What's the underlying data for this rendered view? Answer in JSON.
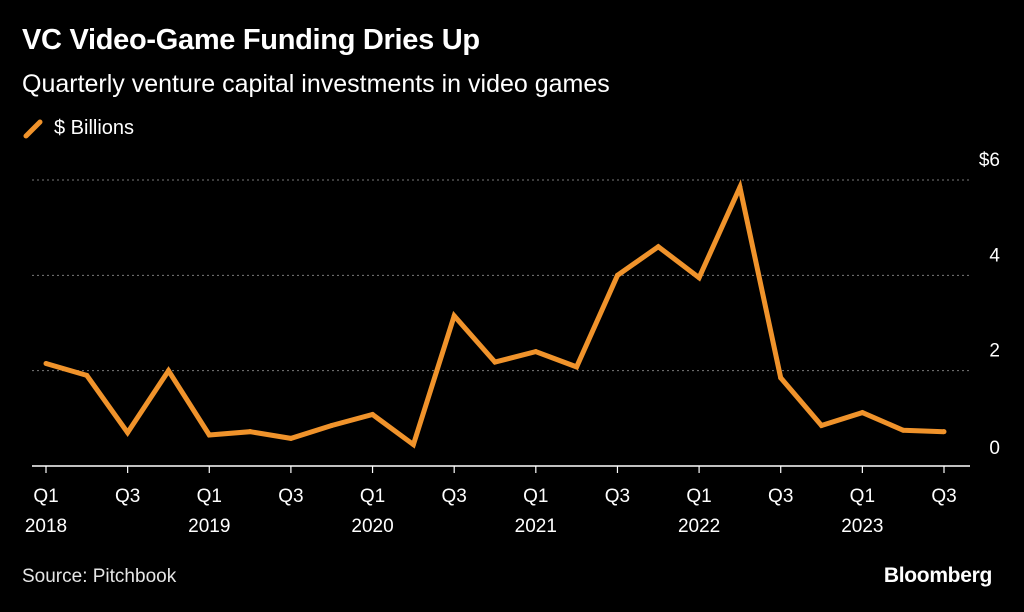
{
  "title": "VC Video-Game Funding Dries Up",
  "subtitle": "Quarterly venture capital investments in video games",
  "legend_label": "$ Billions",
  "source": "Source: Pitchbook",
  "brand": "Bloomberg",
  "colors": {
    "series": "#f0932b",
    "background": "#000000",
    "grid": "#7a7a7a",
    "text": "#ffffff"
  },
  "chart_data": {
    "type": "line",
    "title": "VC Video-Game Funding Dries Up",
    "subtitle": "Quarterly venture capital investments in video games",
    "xlabel": "",
    "ylabel": "$ Billions",
    "ylim": [
      0,
      6
    ],
    "y_ticks": [
      {
        "value": 6,
        "label": "$6"
      },
      {
        "value": 4,
        "label": "4"
      },
      {
        "value": 2,
        "label": "2"
      },
      {
        "value": 0,
        "label": "0"
      }
    ],
    "x_ticks": [
      {
        "index": 0,
        "label": "Q1",
        "year": "2018"
      },
      {
        "index": 2,
        "label": "Q3",
        "year": ""
      },
      {
        "index": 4,
        "label": "Q1",
        "year": "2019"
      },
      {
        "index": 6,
        "label": "Q3",
        "year": ""
      },
      {
        "index": 8,
        "label": "Q1",
        "year": "2020"
      },
      {
        "index": 10,
        "label": "Q3",
        "year": ""
      },
      {
        "index": 12,
        "label": "Q1",
        "year": "2021"
      },
      {
        "index": 14,
        "label": "Q3",
        "year": ""
      },
      {
        "index": 16,
        "label": "Q1",
        "year": "2022"
      },
      {
        "index": 18,
        "label": "Q3",
        "year": ""
      },
      {
        "index": 20,
        "label": "Q1",
        "year": "2023"
      },
      {
        "index": 22,
        "label": "Q3",
        "year": ""
      }
    ],
    "categories": [
      "Q1 2018",
      "Q2 2018",
      "Q3 2018",
      "Q4 2018",
      "Q1 2019",
      "Q2 2019",
      "Q3 2019",
      "Q4 2019",
      "Q1 2020",
      "Q2 2020",
      "Q3 2020",
      "Q4 2020",
      "Q1 2021",
      "Q2 2021",
      "Q3 2021",
      "Q4 2021",
      "Q1 2022",
      "Q2 2022",
      "Q3 2022",
      "Q4 2022",
      "Q1 2023",
      "Q2 2023",
      "Q3 2023"
    ],
    "series": [
      {
        "name": "$ Billions",
        "values": [
          2.15,
          1.9,
          0.7,
          2.0,
          0.65,
          0.72,
          0.58,
          0.85,
          1.08,
          0.45,
          3.15,
          2.18,
          2.4,
          2.08,
          4.0,
          4.6,
          3.95,
          5.85,
          1.85,
          0.85,
          1.12,
          0.75,
          0.72
        ]
      }
    ]
  }
}
